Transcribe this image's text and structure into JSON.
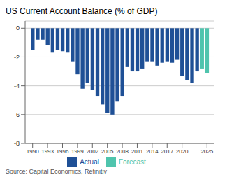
{
  "chart_data": {
    "type": "bar",
    "title": "US Current Account Balance (% of GDP)",
    "annotations": [
      "Source: Capital Economics, Refinitiv"
    ],
    "x": [
      1990,
      1991,
      1992,
      1993,
      1994,
      1995,
      1996,
      1997,
      1998,
      1999,
      2000,
      2001,
      2002,
      2003,
      2004,
      2005,
      2006,
      2007,
      2008,
      2009,
      2010,
      2011,
      2012,
      2013,
      2014,
      2015,
      2016,
      2017,
      2018,
      2019,
      2020,
      2021,
      2022,
      2023,
      2024,
      2025
    ],
    "series": [
      {
        "name": "Actual",
        "color": "#1f5096",
        "values": [
          -1.5,
          -0.8,
          -0.8,
          -1.2,
          -1.7,
          -1.5,
          -1.6,
          -1.7,
          -2.3,
          -3.2,
          -4.2,
          -3.8,
          -4.3,
          -4.7,
          -5.3,
          -5.9,
          -6.0,
          -5.1,
          -4.7,
          -2.7,
          -3.0,
          -3.0,
          -2.8,
          -2.3,
          -2.3,
          -2.6,
          -2.4,
          -2.3,
          -2.4,
          -2.2,
          -3.3,
          -3.6,
          -3.8,
          -3.0,
          null,
          null
        ]
      },
      {
        "name": "Forecast",
        "color": "#4fc4ad",
        "values": [
          null,
          null,
          null,
          null,
          null,
          null,
          null,
          null,
          null,
          null,
          null,
          null,
          null,
          null,
          null,
          null,
          null,
          null,
          null,
          null,
          null,
          null,
          null,
          null,
          null,
          null,
          null,
          null,
          null,
          null,
          null,
          null,
          null,
          null,
          -2.8,
          -3.1
        ]
      }
    ],
    "xlim": [
      1988.5,
      2026.5
    ],
    "xticks": [
      1990,
      1993,
      1996,
      1999,
      2002,
      2005,
      2008,
      2011,
      2014,
      2017,
      2020,
      2025
    ],
    "ylim": [
      -8,
      0.5
    ],
    "yticks": [
      0,
      -2,
      -4,
      -6,
      -8
    ],
    "grid": true,
    "legend": "bottom"
  }
}
